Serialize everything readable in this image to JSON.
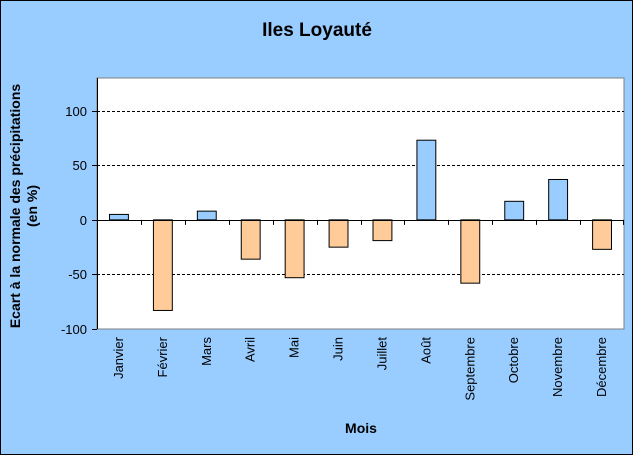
{
  "chart_data": {
    "type": "bar",
    "title": "Iles Loyauté",
    "xlabel": "Mois",
    "ylabel_line1": "Ecart à la normale des précipitations",
    "ylabel_line2": "(en %)",
    "categories": [
      "Janvier",
      "Février",
      "Mars",
      "Avril",
      "Mai",
      "Juin",
      "Juillet",
      "Août",
      "Septembre",
      "Octobre",
      "Novembre",
      "Décembre"
    ],
    "values": [
      5,
      -83,
      8,
      -36,
      -53,
      -25,
      -19,
      73,
      -58,
      17,
      37,
      -27
    ],
    "ylim": [
      -100,
      130
    ],
    "yticks": [
      -100,
      -50,
      0,
      50,
      100
    ],
    "grid": "horizontal dashed",
    "colors": {
      "background": "#99ccff",
      "plot_background": "#ffffff",
      "positive_bar": "#99ccff",
      "negative_bar": "#ffcc99"
    }
  }
}
